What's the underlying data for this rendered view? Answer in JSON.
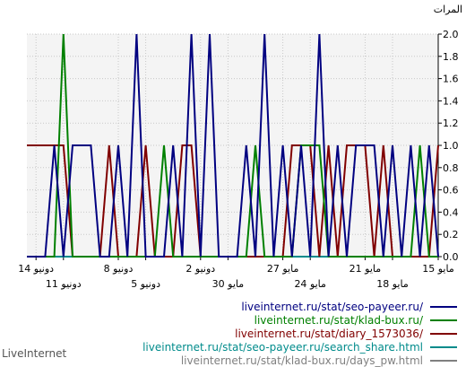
{
  "chart_data": {
    "type": "line",
    "ylabel": "المرات",
    "ylim": [
      0,
      2
    ],
    "yticks": [
      "0.0",
      "0.2",
      "0.4",
      "0.6",
      "0.8",
      "1.0",
      "1.2",
      "1.4",
      "1.6",
      "1.8",
      "2.0"
    ],
    "x_start": 0,
    "x_end": 45,
    "xticks_row1": [
      {
        "x": 1,
        "label": "14 دونيو"
      },
      {
        "x": 10,
        "label": "8 دونيو"
      },
      {
        "x": 19,
        "label": "2 دونيو"
      },
      {
        "x": 28,
        "label": "27 مايو"
      },
      {
        "x": 37,
        "label": "21 مايو"
      },
      {
        "x": 45,
        "label": "15 مايو"
      }
    ],
    "xticks_row2": [
      {
        "x": 4,
        "label": "11 دونيو"
      },
      {
        "x": 13,
        "label": "5 دونيو"
      },
      {
        "x": 22,
        "label": "30 مايو"
      },
      {
        "x": 31,
        "label": "24 مايو"
      },
      {
        "x": 40,
        "label": "18 مايو"
      }
    ],
    "series": [
      {
        "name": "liveinternet.ru/stat/seo-payeer.ru/",
        "color": "#000080",
        "x": [
          0,
          1,
          2,
          3,
          4,
          5,
          6,
          7,
          8,
          9,
          10,
          11,
          12,
          13,
          14,
          15,
          16,
          17,
          18,
          19,
          20,
          21,
          22,
          23,
          24,
          25,
          26,
          27,
          28,
          29,
          30,
          31,
          32,
          33,
          34,
          35,
          36,
          37,
          38,
          39,
          40,
          41,
          42,
          43,
          44,
          45
        ],
        "y": [
          0,
          0,
          0,
          1,
          0,
          1,
          1,
          1,
          0,
          0,
          1,
          0,
          2,
          0,
          0,
          0,
          1,
          0,
          2,
          0,
          2,
          0,
          0,
          0,
          1,
          0,
          2,
          0,
          1,
          0,
          1,
          0,
          2,
          0,
          1,
          0,
          1,
          1,
          1,
          0,
          1,
          0,
          1,
          0,
          1,
          0
        ]
      },
      {
        "name": "liveinternet.ru/stat/klad-bux.ru/",
        "color": "#008000",
        "x": [
          0,
          1,
          2,
          3,
          4,
          5,
          6,
          7,
          8,
          9,
          10,
          11,
          12,
          13,
          14,
          15,
          16,
          17,
          18,
          19,
          20,
          21,
          22,
          23,
          24,
          25,
          26,
          27,
          28,
          29,
          30,
          31,
          32,
          33,
          34,
          35,
          36,
          37,
          38,
          39,
          40,
          41,
          42,
          43,
          44,
          45
        ],
        "y": [
          0,
          0,
          0,
          0,
          2,
          0,
          0,
          0,
          0,
          0,
          0,
          0,
          0,
          0,
          0,
          1,
          0,
          0,
          0,
          0,
          0,
          0,
          0,
          0,
          0,
          1,
          0,
          0,
          0,
          0,
          1,
          1,
          1,
          0,
          0,
          0,
          0,
          0,
          0,
          0,
          0,
          0,
          0,
          1,
          0,
          0
        ]
      },
      {
        "name": "liveinternet.ru/stat/diary_1573036/",
        "color": "#800000",
        "x": [
          0,
          1,
          2,
          3,
          4,
          5,
          6,
          7,
          8,
          9,
          10,
          11,
          12,
          13,
          14,
          15,
          16,
          17,
          18,
          19,
          20,
          21,
          22,
          23,
          24,
          25,
          26,
          27,
          28,
          29,
          30,
          31,
          32,
          33,
          34,
          35,
          36,
          37,
          38,
          39,
          40,
          41,
          42,
          43,
          44,
          45
        ],
        "y": [
          1,
          1,
          1,
          1,
          1,
          0,
          0,
          0,
          0,
          1,
          0,
          0,
          0,
          1,
          0,
          0,
          0,
          1,
          1,
          0,
          0,
          0,
          0,
          0,
          0,
          0,
          0,
          0,
          0,
          1,
          1,
          1,
          0,
          1,
          0,
          1,
          1,
          1,
          0,
          1,
          0,
          0,
          0,
          0,
          0,
          1
        ]
      },
      {
        "name": "liveinternet.ru/stat/seo-payeer.ru/search_share.html",
        "color": "#008b8b",
        "x": [
          0,
          45
        ],
        "y": [
          0,
          0
        ]
      },
      {
        "name": "liveinternet.ru/stat/klad-bux.ru/days_pw.html",
        "color": "#808080",
        "x": [
          0,
          45
        ],
        "y": [
          0,
          0
        ]
      }
    ]
  },
  "brand": "LiveInternet"
}
